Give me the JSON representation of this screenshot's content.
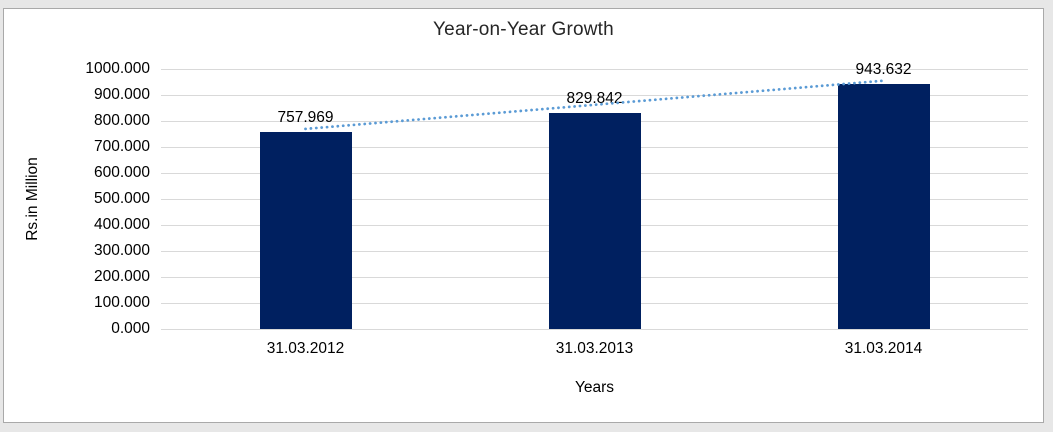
{
  "chart_data": {
    "type": "bar",
    "title": "Year-on-Year Growth",
    "xlabel": "Years",
    "ylabel": "Rs.in Million",
    "categories": [
      "31.03.2012",
      "31.03.2013",
      "31.03.2014"
    ],
    "values": [
      757.969,
      829.842,
      943.632
    ],
    "value_labels": [
      "757.969",
      "829.842",
      "943.632"
    ],
    "ylim": [
      0,
      1000
    ],
    "ytick_step": 100,
    "ytick_labels_top_to_bottom": [
      "1000.000",
      "900.000",
      "800.000",
      "700.000",
      "600.000",
      "500.000",
      "400.000",
      "300.000",
      "200.000",
      "100.000",
      "0.000"
    ],
    "grid": true,
    "legend": "none",
    "trendline": {
      "type": "linear-dotted",
      "from_value": 757.969,
      "to_value": 943.632,
      "color": "#5b9bd5"
    },
    "colors": {
      "bar": "#002060",
      "gridline": "#d9d9d9",
      "trendline": "#5b9bd5",
      "text": "#000000",
      "title_text": "#262626",
      "panel_background": "#ffffff",
      "panel_border": "#a9a9a9",
      "outer_background": "#e7e7e7"
    }
  }
}
